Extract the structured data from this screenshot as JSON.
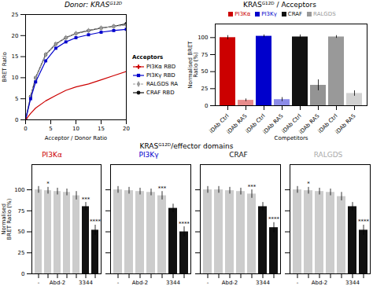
{
  "chart_data": [
    {
      "type": "line",
      "title": "Donor: KRASᴳ¹²ᴰ",
      "xlabel": "Acceptor / Donor Ratio",
      "ylabel": "BRET Ratio",
      "x": [
        0,
        1,
        2,
        4,
        6,
        8,
        10,
        12.5,
        15,
        17.5,
        20
      ],
      "series": [
        {
          "name": "PI3Kα RBD",
          "color": "#cc0000",
          "marker": "plus",
          "line_style": "solid",
          "values": [
            0,
            1.5,
            2.8,
            4.5,
            5.8,
            7.0,
            7.8,
            8.5,
            9.5,
            10.5,
            11.5
          ]
        },
        {
          "name": "PI3Kγ RBD",
          "color": "#0000cc",
          "marker": "square",
          "line_style": "solid",
          "values": [
            0,
            5,
            9,
            14,
            17,
            18.5,
            19.5,
            20.2,
            20.8,
            21.2,
            21.5
          ]
        },
        {
          "name": "RALGDS RA",
          "color": "#999999",
          "marker": "diamond",
          "line_style": "dashed",
          "values": [
            0,
            5.5,
            10,
            15.5,
            18,
            19.5,
            20.5,
            21.2,
            21.8,
            22.2,
            22.5
          ]
        },
        {
          "name": "CRAF RBD",
          "color": "#111111",
          "marker": "circle",
          "line_style": "solid",
          "values": [
            0,
            5.5,
            10,
            15.5,
            18,
            19.5,
            20.5,
            21.2,
            21.8,
            22.2,
            22.8
          ]
        }
      ],
      "xlim": [
        0,
        20
      ],
      "ylim": [
        0,
        25
      ],
      "xticks": [
        0,
        5,
        10,
        15,
        20
      ],
      "yticks": [
        0,
        5,
        10,
        15,
        20,
        25
      ],
      "legend": "right",
      "legend_title": "Acceptors"
    },
    {
      "type": "bar",
      "title": "KRASᴳ¹²ᴰ / Acceptors",
      "xlabel": "Competitors",
      "ylabel": "Normalised BRET\nRatio (%)",
      "categories": [
        "PI3Kα",
        "PI3Kγ",
        "CRAF",
        "RALGDS"
      ],
      "colors": [
        "#cc0000",
        "#0000cc",
        "#111111",
        "#999999"
      ],
      "series": [
        {
          "name": "iDAb Ctrl",
          "values": [
            100,
            102,
            101,
            101
          ],
          "errors": [
            3,
            2,
            3,
            2
          ]
        },
        {
          "name": "iDAb RAS",
          "values": [
            8,
            9,
            30,
            18
          ],
          "errors": [
            2,
            3,
            8,
            4
          ]
        }
      ],
      "ylim": [
        0,
        120
      ],
      "yticks": [
        0,
        25,
        50,
        75,
        100
      ],
      "legend": "top"
    },
    {
      "type": "bar",
      "title": "KRASᴳ¹²ᴰ/effector domains",
      "charts": [
        {
          "type": "bar",
          "title": "PI3Kα",
          "color": "#cc0000",
          "ylabel": "Normalised\nBRET Ratio (%)",
          "categories": [
            "-",
            null,
            "Abd-2",
            null,
            null,
            "3344",
            null
          ],
          "values": [
            100,
            99,
            98,
            97,
            93,
            80,
            52
          ],
          "errors": [
            4,
            4,
            4,
            4,
            5,
            5,
            6
          ],
          "colors": [
            "#cccccc",
            "#cccccc",
            "#cccccc",
            "#cccccc",
            "#cccccc",
            "#111111",
            "#111111"
          ],
          "annotations": [
            null,
            "*",
            null,
            null,
            null,
            "***",
            "****"
          ],
          "ylim": [
            0,
            130
          ],
          "yticks": [
            0,
            25,
            50,
            75,
            100
          ]
        },
        {
          "type": "bar",
          "title": "PI3Kγ",
          "color": "#0000cc",
          "categories": [
            "-",
            null,
            "Abd-2",
            null,
            null,
            "3344",
            null
          ],
          "values": [
            100,
            99,
            98,
            97,
            93,
            78,
            50
          ],
          "errors": [
            4,
            4,
            4,
            4,
            5,
            5,
            6
          ],
          "colors": [
            "#cccccc",
            "#cccccc",
            "#cccccc",
            "#cccccc",
            "#cccccc",
            "#111111",
            "#111111"
          ],
          "annotations": [
            null,
            null,
            null,
            null,
            "***",
            null,
            "****"
          ],
          "ylim": [
            0,
            130
          ],
          "yticks": [
            0,
            25,
            50,
            75,
            100
          ],
          "tick_labels": "x"
        },
        {
          "type": "bar",
          "title": "CRAF",
          "color": "#111111",
          "categories": [
            "-",
            null,
            "Abd-2",
            null,
            null,
            "3344",
            null
          ],
          "values": [
            100,
            100,
            99,
            98,
            95,
            80,
            55
          ],
          "errors": [
            4,
            4,
            4,
            4,
            5,
            5,
            6
          ],
          "colors": [
            "#cccccc",
            "#cccccc",
            "#cccccc",
            "#cccccc",
            "#cccccc",
            "#111111",
            "#111111"
          ],
          "annotations": [
            null,
            null,
            null,
            null,
            "***",
            null,
            "****"
          ],
          "ylim": [
            0,
            130
          ],
          "yticks": [
            0,
            25,
            50,
            75,
            100
          ],
          "tick_labels": "x"
        },
        {
          "type": "bar",
          "title": "RALGDS",
          "color": "#aaaaaa",
          "categories": [
            "-",
            null,
            "Abd-2",
            null,
            null,
            "3344",
            null
          ],
          "values": [
            100,
            99,
            98,
            97,
            92,
            80,
            52
          ],
          "errors": [
            4,
            4,
            4,
            4,
            5,
            5,
            6
          ],
          "colors": [
            "#cccccc",
            "#cccccc",
            "#cccccc",
            "#cccccc",
            "#cccccc",
            "#111111",
            "#111111"
          ],
          "annotations": [
            null,
            "*",
            null,
            null,
            null,
            null,
            "****"
          ],
          "ylim": [
            0,
            130
          ],
          "yticks": [
            0,
            25,
            50,
            75,
            100
          ],
          "tick_labels": "x"
        }
      ]
    }
  ]
}
